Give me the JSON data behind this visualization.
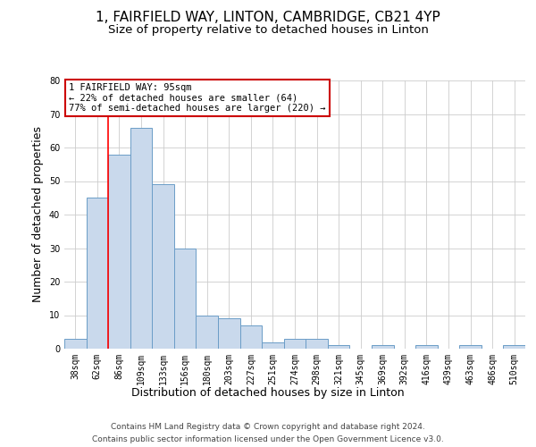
{
  "title": "1, FAIRFIELD WAY, LINTON, CAMBRIDGE, CB21 4YP",
  "subtitle": "Size of property relative to detached houses in Linton",
  "xlabel": "Distribution of detached houses by size in Linton",
  "ylabel": "Number of detached properties",
  "categories": [
    "38sqm",
    "62sqm",
    "86sqm",
    "109sqm",
    "133sqm",
    "156sqm",
    "180sqm",
    "203sqm",
    "227sqm",
    "251sqm",
    "274sqm",
    "298sqm",
    "321sqm",
    "345sqm",
    "369sqm",
    "392sqm",
    "416sqm",
    "439sqm",
    "463sqm",
    "486sqm",
    "510sqm"
  ],
  "values": [
    3,
    45,
    58,
    66,
    49,
    30,
    10,
    9,
    7,
    2,
    3,
    3,
    1,
    0,
    1,
    0,
    1,
    0,
    1,
    0,
    1
  ],
  "bar_color": "#c9d9ec",
  "bar_edgecolor": "#6b9dc7",
  "ylim": [
    0,
    80
  ],
  "yticks": [
    0,
    10,
    20,
    30,
    40,
    50,
    60,
    70,
    80
  ],
  "red_line_x": 1.5,
  "annotation_text": "1 FAIRFIELD WAY: 95sqm\n← 22% of detached houses are smaller (64)\n77% of semi-detached houses are larger (220) →",
  "annotation_box_color": "#ffffff",
  "annotation_border_color": "#cc0000",
  "footnote1": "Contains HM Land Registry data © Crown copyright and database right 2024.",
  "footnote2": "Contains public sector information licensed under the Open Government Licence v3.0.",
  "bg_color": "#ffffff",
  "grid_color": "#cccccc",
  "title_fontsize": 11,
  "subtitle_fontsize": 9.5,
  "axis_label_fontsize": 9,
  "tick_fontsize": 7,
  "annotation_fontsize": 7.5,
  "footnote_fontsize": 6.5
}
